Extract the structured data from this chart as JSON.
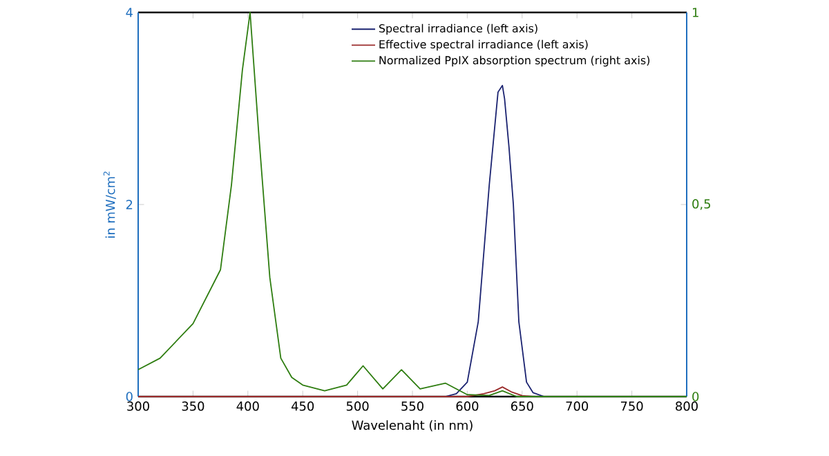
{
  "chart_data": {
    "type": "line",
    "xlabel": "Wavelenaht (in nm)",
    "ylabel": "in mW/cm$^{2}$",
    "xlim": [
      300,
      800
    ],
    "xticks": [
      300,
      350,
      400,
      450,
      500,
      550,
      600,
      650,
      700,
      750,
      800
    ],
    "ylim": [
      0,
      4
    ],
    "yticks": [
      0,
      2,
      4
    ],
    "y2lim": [
      0,
      1
    ],
    "y2ticks": [
      0,
      {
        "value": 0.5,
        "label": "0,5"
      },
      1
    ],
    "legend": "top right",
    "grid": false,
    "marker": "none",
    "line_style": "solid",
    "series": [
      {
        "name": "Spectral irradiance (left axis)",
        "color": "#1a2270",
        "x": [
          300,
          580,
          590,
          600,
          610,
          620,
          628,
          632,
          634,
          638,
          642,
          647,
          654,
          660,
          670,
          800
        ],
        "values": [
          0,
          0,
          0.03,
          0.15,
          0.78,
          2.2,
          3.17,
          3.24,
          3.1,
          2.6,
          2.0,
          0.78,
          0.15,
          0.04,
          0,
          0
        ]
      },
      {
        "name": "Effective spectral irradiance (left axis)",
        "color": "#9a2a2a",
        "x": [
          300,
          600,
          615,
          625,
          632,
          640,
          650,
          660,
          800
        ],
        "values": [
          0,
          0,
          0.03,
          0.06,
          0.1,
          0.05,
          0.01,
          0,
          0
        ]
      },
      {
        "name": "Normalized PpIX absorption spectrum (right axis)",
        "color": "#2e7d10",
        "axis": "y2",
        "x": [
          300,
          320,
          350,
          375,
          385,
          395,
          402,
          410,
          420,
          430,
          440,
          450,
          470,
          490,
          505,
          523,
          540,
          557,
          580,
          600,
          620,
          632,
          645,
          800
        ],
        "values": [
          0.07,
          0.1,
          0.19,
          0.33,
          0.55,
          0.85,
          1.0,
          0.68,
          0.31,
          0.1,
          0.05,
          0.03,
          0.015,
          0.03,
          0.08,
          0.02,
          0.07,
          0.02,
          0.035,
          0.005,
          0.003,
          0.015,
          0,
          0
        ]
      }
    ]
  }
}
